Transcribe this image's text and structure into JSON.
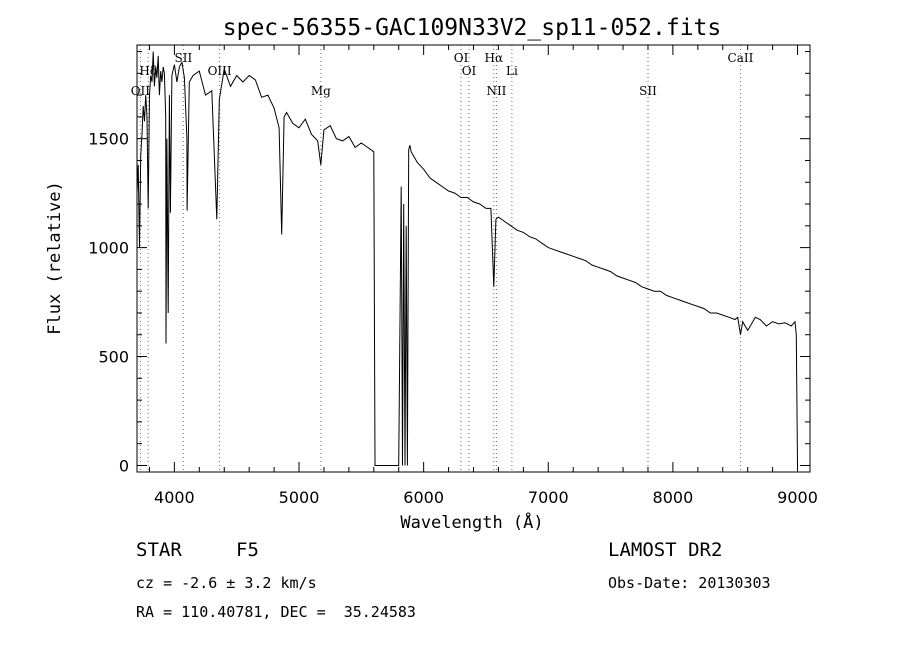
{
  "chart_data": {
    "type": "line",
    "title": "spec-56355-GAC109N33V2_sp11-052.fits",
    "xlabel": "Wavelength (Å)",
    "ylabel": "Flux (relative)",
    "xlim": [
      3700,
      9100
    ],
    "ylim": [
      -30,
      1930
    ],
    "xticks": [
      4000,
      5000,
      6000,
      7000,
      8000,
      9000
    ],
    "yticks": [
      0,
      500,
      1000,
      1500
    ],
    "grid": false,
    "spectral_lines": [
      {
        "name": "Hδ",
        "x": 3790
      },
      {
        "name": "OII",
        "x": 3727
      },
      {
        "name": "SII",
        "x": 4072
      },
      {
        "name": "OIII",
        "x": 4363
      },
      {
        "name": "Mg",
        "x": 5175
      },
      {
        "name": "OI",
        "x": 6300
      },
      {
        "name": "OI",
        "x": 6364
      },
      {
        "name": "NII",
        "x": 6584
      },
      {
        "name": "Hα",
        "x": 6563
      },
      {
        "name": "Li",
        "x": 6708
      },
      {
        "name": "SII",
        "x": 7800
      },
      {
        "name": "CaII",
        "x": 8542
      }
    ],
    "series": [
      {
        "x": [
          3700,
          3710,
          3720,
          3730,
          3740,
          3750,
          3760,
          3770,
          3780,
          3790,
          3800,
          3810,
          3820,
          3830,
          3840,
          3850,
          3860,
          3870,
          3880,
          3890,
          3900,
          3910,
          3920,
          3930,
          3933,
          3940,
          3950,
          3960,
          3968,
          3980,
          4000,
          4020,
          4040,
          4060,
          4080,
          4100,
          4102,
          4120,
          4150,
          4200,
          4250,
          4300,
          4340,
          4360,
          4400,
          4450,
          4500,
          4550,
          4600,
          4650,
          4700,
          4750,
          4800,
          4840,
          4861,
          4880,
          4900,
          4950,
          5000,
          5050,
          5100,
          5150,
          5175,
          5200,
          5250,
          5300,
          5350,
          5400,
          5450,
          5500,
          5550,
          5600,
          5610,
          5620,
          5700,
          5800,
          5820,
          5830,
          5840,
          5850,
          5860,
          5870,
          5880,
          5890,
          5900,
          5950,
          6000,
          6050,
          6100,
          6150,
          6200,
          6250,
          6300,
          6350,
          6400,
          6450,
          6500,
          6540,
          6563,
          6580,
          6600,
          6650,
          6700,
          6750,
          6800,
          6850,
          6900,
          6950,
          7000,
          7050,
          7100,
          7150,
          7200,
          7250,
          7300,
          7350,
          7400,
          7450,
          7500,
          7550,
          7600,
          7650,
          7700,
          7750,
          7800,
          7850,
          7900,
          7950,
          8000,
          8050,
          8100,
          8150,
          8200,
          8250,
          8300,
          8350,
          8400,
          8450,
          8498,
          8520,
          8542,
          8560,
          8600,
          8662,
          8700,
          8750,
          8800,
          8850,
          8900,
          8950,
          8980,
          8990,
          9000
        ],
        "y": [
          1250,
          1380,
          1000,
          1420,
          1520,
          1650,
          1580,
          1700,
          1600,
          1180,
          1700,
          1790,
          1760,
          1900,
          1740,
          1830,
          1780,
          1880,
          1700,
          1810,
          1760,
          1830,
          1800,
          1600,
          560,
          1500,
          700,
          1700,
          1160,
          1790,
          1840,
          1760,
          1830,
          1850,
          1780,
          1500,
          1170,
          1760,
          1790,
          1810,
          1700,
          1720,
          1130,
          1680,
          1820,
          1740,
          1790,
          1760,
          1790,
          1770,
          1690,
          1700,
          1640,
          1550,
          1060,
          1600,
          1620,
          1570,
          1550,
          1590,
          1520,
          1490,
          1380,
          1540,
          1560,
          1500,
          1490,
          1510,
          1460,
          1480,
          1460,
          1440,
          0,
          0,
          0,
          0,
          1280,
          0,
          1200,
          0,
          1100,
          0,
          1450,
          1470,
          1440,
          1390,
          1360,
          1320,
          1300,
          1280,
          1260,
          1250,
          1230,
          1230,
          1210,
          1200,
          1180,
          1180,
          820,
          1130,
          1140,
          1120,
          1100,
          1080,
          1070,
          1050,
          1040,
          1020,
          1000,
          990,
          980,
          970,
          960,
          950,
          940,
          920,
          910,
          900,
          890,
          870,
          860,
          850,
          840,
          820,
          810,
          800,
          800,
          780,
          770,
          760,
          750,
          740,
          730,
          720,
          700,
          700,
          690,
          680,
          670,
          680,
          600,
          660,
          620,
          680,
          670,
          640,
          660,
          650,
          655,
          640,
          660,
          600,
          0
        ]
      }
    ]
  },
  "footer": {
    "object_type": "STAR",
    "subclass": "F5",
    "velocity": "cz = -2.6 ± 3.2 km/s",
    "coords": "RA = 110.40781, DEC =  35.24583",
    "survey": "LAMOST DR2",
    "obs_date": "Obs-Date: 20130303"
  }
}
